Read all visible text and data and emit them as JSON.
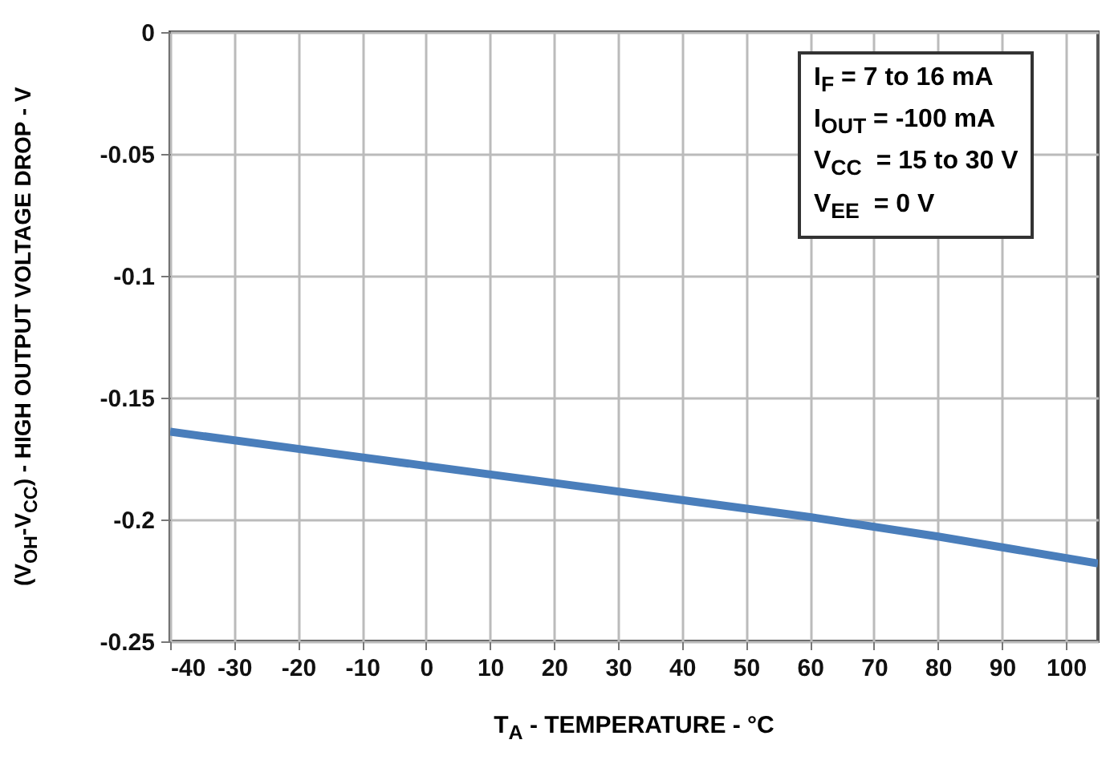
{
  "chart_data": {
    "type": "line",
    "xlabel": "T$_{A}$ - TEMPERATURE - °C",
    "ylabel": "(V$_{OH}$-V$_{CC}$) - HIGH OUTPUT VOLTAGE DROP - V",
    "x": [
      -40,
      -20,
      0,
      20,
      40,
      60,
      80,
      105
    ],
    "series": [
      {
        "color": "#4a7ebb",
        "values": [
          -0.164,
          -0.171,
          -0.178,
          -0.185,
          -0.192,
          -0.199,
          -0.207,
          -0.218
        ]
      }
    ],
    "xlim": [
      -40,
      105
    ],
    "xticks": [
      -40,
      -30,
      -20,
      -10,
      0,
      10,
      20,
      30,
      40,
      50,
      60,
      70,
      80,
      90,
      100
    ],
    "ylim": [
      -0.25,
      0
    ],
    "yticks": [
      -0.25,
      -0.2,
      -0.15,
      -0.1,
      -0.05,
      0
    ],
    "grid": true,
    "marker": "none",
    "line_style": "solid",
    "annotations": [
      "I$_{F}$ = 7 to 16 mA",
      "I$_{OUT}$ = -100 mA",
      "V$_{CC}$  = 15 to 30 V",
      "V$_{EE}$  = 0 V"
    ]
  }
}
